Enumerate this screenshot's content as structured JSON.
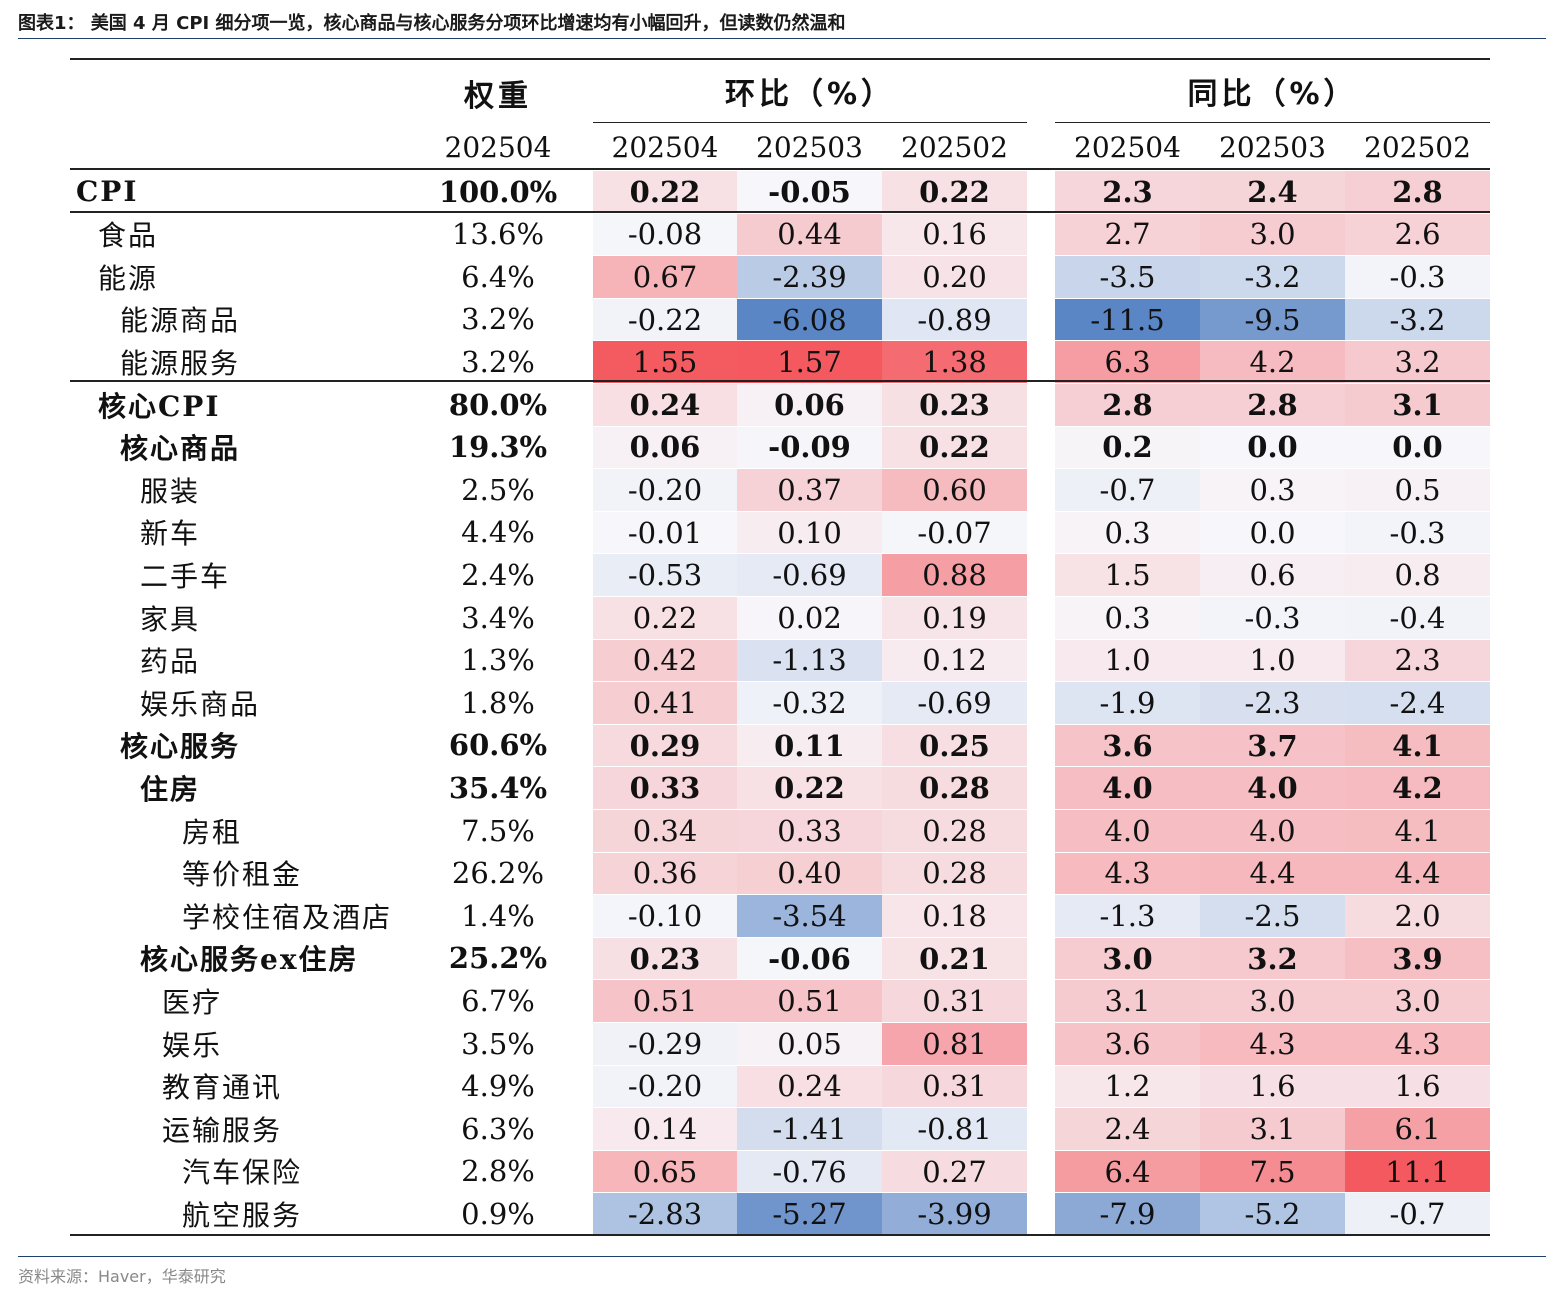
{
  "caption": "图表1：  美国 4 月 CPI 细分项一览，核心商品与核心服务分项环比增速均有小幅回升，但读数仍然温和",
  "source": "资料来源：Haver，华泰研究",
  "headers": {
    "weight": "权重",
    "mom": "环比（%）",
    "yoy": "同比（%）",
    "weight_period": "202504",
    "periods": [
      "202504",
      "202503",
      "202502"
    ]
  },
  "colors": {
    "red_max": "#f4595f",
    "blue_max": "#5b86c5",
    "neutral": "#f7f7fb"
  },
  "rows": [
    {
      "label": "CPI",
      "indent": 0,
      "bold": true,
      "weight": "100.0%",
      "mom": [
        "0.22",
        "-0.05",
        "0.22"
      ],
      "yoy": [
        "2.3",
        "2.4",
        "2.8"
      ]
    },
    {
      "label": "食品",
      "indent": 1,
      "bold": false,
      "weight": "13.6%",
      "mom": [
        "-0.08",
        "0.44",
        "0.16"
      ],
      "yoy": [
        "2.7",
        "3.0",
        "2.6"
      ]
    },
    {
      "label": "能源",
      "indent": 1,
      "bold": false,
      "weight": "6.4%",
      "mom": [
        "0.67",
        "-2.39",
        "0.20"
      ],
      "yoy": [
        "-3.5",
        "-3.2",
        "-0.3"
      ]
    },
    {
      "label": "能源商品",
      "indent": 2,
      "bold": false,
      "weight": "3.2%",
      "mom": [
        "-0.22",
        "-6.08",
        "-0.89"
      ],
      "yoy": [
        "-11.5",
        "-9.5",
        "-3.2"
      ]
    },
    {
      "label": "能源服务",
      "indent": 2,
      "bold": false,
      "weight": "3.2%",
      "mom": [
        "1.55",
        "1.57",
        "1.38"
      ],
      "yoy": [
        "6.3",
        "4.2",
        "3.2"
      ]
    },
    {
      "label": "核心CPI",
      "indent": 1,
      "bold": true,
      "weight": "80.0%",
      "mom": [
        "0.24",
        "0.06",
        "0.23"
      ],
      "yoy": [
        "2.8",
        "2.8",
        "3.1"
      ]
    },
    {
      "label": "核心商品",
      "indent": 2,
      "bold": true,
      "weight": "19.3%",
      "mom": [
        "0.06",
        "-0.09",
        "0.22"
      ],
      "yoy": [
        "0.2",
        "0.0",
        "0.0"
      ]
    },
    {
      "label": "服装",
      "indent": 3,
      "bold": false,
      "weight": "2.5%",
      "mom": [
        "-0.20",
        "0.37",
        "0.60"
      ],
      "yoy": [
        "-0.7",
        "0.3",
        "0.5"
      ]
    },
    {
      "label": "新车",
      "indent": 3,
      "bold": false,
      "weight": "4.4%",
      "mom": [
        "-0.01",
        "0.10",
        "-0.07"
      ],
      "yoy": [
        "0.3",
        "0.0",
        "-0.3"
      ]
    },
    {
      "label": "二手车",
      "indent": 3,
      "bold": false,
      "weight": "2.4%",
      "mom": [
        "-0.53",
        "-0.69",
        "0.88"
      ],
      "yoy": [
        "1.5",
        "0.6",
        "0.8"
      ]
    },
    {
      "label": "家具",
      "indent": 3,
      "bold": false,
      "weight": "3.4%",
      "mom": [
        "0.22",
        "0.02",
        "0.19"
      ],
      "yoy": [
        "0.3",
        "-0.3",
        "-0.4"
      ]
    },
    {
      "label": "药品",
      "indent": 3,
      "bold": false,
      "weight": "1.3%",
      "mom": [
        "0.42",
        "-1.13",
        "0.12"
      ],
      "yoy": [
        "1.0",
        "1.0",
        "2.3"
      ]
    },
    {
      "label": "娱乐商品",
      "indent": 3,
      "bold": false,
      "weight": "1.8%",
      "mom": [
        "0.41",
        "-0.32",
        "-0.69"
      ],
      "yoy": [
        "-1.9",
        "-2.3",
        "-2.4"
      ]
    },
    {
      "label": "核心服务",
      "indent": 2,
      "bold": true,
      "weight": "60.6%",
      "mom": [
        "0.29",
        "0.11",
        "0.25"
      ],
      "yoy": [
        "3.6",
        "3.7",
        "4.1"
      ]
    },
    {
      "label": "住房",
      "indent": 3,
      "bold": true,
      "weight": "35.4%",
      "mom": [
        "0.33",
        "0.22",
        "0.28"
      ],
      "yoy": [
        "4.0",
        "4.0",
        "4.2"
      ]
    },
    {
      "label": "房租",
      "indent": 5,
      "bold": false,
      "weight": "7.5%",
      "mom": [
        "0.34",
        "0.33",
        "0.28"
      ],
      "yoy": [
        "4.0",
        "4.0",
        "4.1"
      ]
    },
    {
      "label": "等价租金",
      "indent": 5,
      "bold": false,
      "weight": "26.2%",
      "mom": [
        "0.36",
        "0.40",
        "0.28"
      ],
      "yoy": [
        "4.3",
        "4.4",
        "4.4"
      ]
    },
    {
      "label": "学校住宿及酒店",
      "indent": 5,
      "bold": false,
      "weight": "1.4%",
      "mom": [
        "-0.10",
        "-3.54",
        "0.18"
      ],
      "yoy": [
        "-1.3",
        "-2.5",
        "2.0"
      ]
    },
    {
      "label": "核心服务ex住房",
      "indent": 3,
      "bold": true,
      "weight": "25.2%",
      "mom": [
        "0.23",
        "-0.06",
        "0.21"
      ],
      "yoy": [
        "3.0",
        "3.2",
        "3.9"
      ]
    },
    {
      "label": "医疗",
      "indent": 4,
      "bold": false,
      "weight": "6.7%",
      "mom": [
        "0.51",
        "0.51",
        "0.31"
      ],
      "yoy": [
        "3.1",
        "3.0",
        "3.0"
      ]
    },
    {
      "label": "娱乐",
      "indent": 4,
      "bold": false,
      "weight": "3.5%",
      "mom": [
        "-0.29",
        "0.05",
        "0.81"
      ],
      "yoy": [
        "3.6",
        "4.3",
        "4.3"
      ]
    },
    {
      "label": "教育通讯",
      "indent": 4,
      "bold": false,
      "weight": "4.9%",
      "mom": [
        "-0.20",
        "0.24",
        "0.31"
      ],
      "yoy": [
        "1.2",
        "1.6",
        "1.6"
      ]
    },
    {
      "label": "运输服务",
      "indent": 4,
      "bold": false,
      "weight": "6.3%",
      "mom": [
        "0.14",
        "-1.41",
        "-0.81"
      ],
      "yoy": [
        "2.4",
        "3.1",
        "6.1"
      ]
    },
    {
      "label": "汽车保险",
      "indent": 5,
      "bold": false,
      "weight": "2.8%",
      "mom": [
        "0.65",
        "-0.76",
        "0.27"
      ],
      "yoy": [
        "6.4",
        "7.5",
        "11.1"
      ]
    },
    {
      "label": "航空服务",
      "indent": 5,
      "bold": false,
      "weight": "0.9%",
      "mom": [
        "-2.83",
        "-5.27",
        "-3.99"
      ],
      "yoy": [
        "-7.9",
        "-5.2",
        "-0.7"
      ]
    }
  ]
}
